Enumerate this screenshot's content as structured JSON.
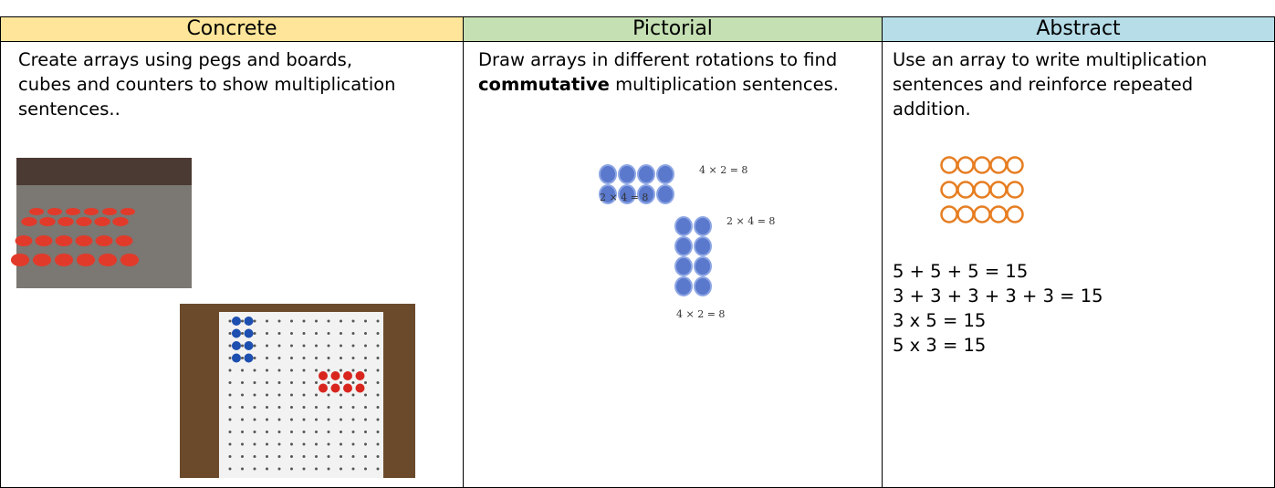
{
  "table": {
    "headers": [
      "Concrete",
      "Pictorial",
      "Abstract"
    ],
    "concrete": {
      "text": "Create arrays using pegs and boards, cubes and counters to show multiplication sentences.."
    },
    "pictorial": {
      "text_before": "Draw arrays in different rotations to find ",
      "text_bold": "commutative",
      "text_after": " multiplication sentences.",
      "labels": [
        "4 × 2 = 8",
        "2 × 4 = 8",
        "2 × 4 = 8",
        "4 × 2 = 8"
      ]
    },
    "abstract": {
      "text": "Use an array to write multiplication sentences and reinforce repeated addition.",
      "equations": [
        "5 + 5 + 5 = 15",
        "3 + 3 + 3 + 3 + 3 = 15",
        "3 x 5 = 15",
        "5 x 3 = 15"
      ]
    }
  }
}
